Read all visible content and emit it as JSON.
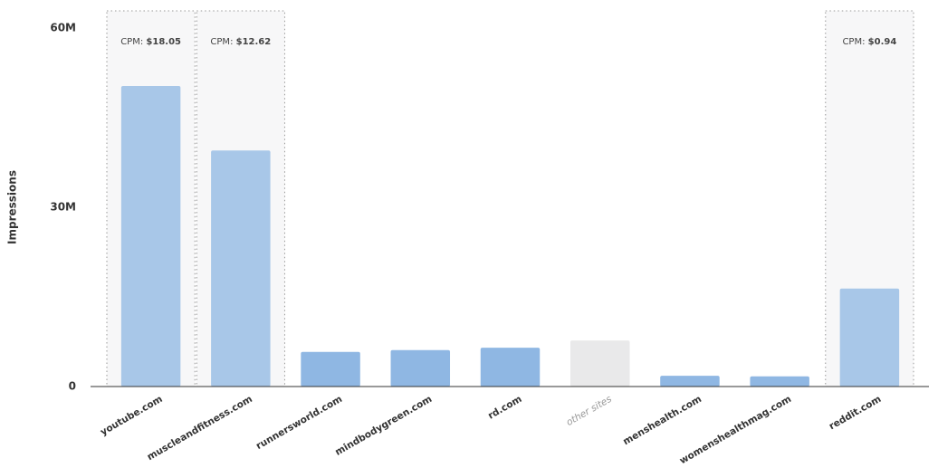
{
  "chart_data": {
    "type": "bar",
    "y_label": "Impressions",
    "categories": [
      "youtube.com",
      "muscleandfitness.com",
      "runnersworld.com",
      "mindbodygreen.com",
      "rd.com",
      "other sites",
      "menshealth.com",
      "womenshealthmag.com",
      "reddit.com"
    ],
    "values": [
      50300000,
      39500000,
      5800000,
      6100000,
      6500000,
      7700000,
      1800000,
      1700000,
      16400000
    ],
    "colors": [
      "#a8c7e8",
      "#a8c7e8",
      "#8fb7e3",
      "#8fb7e3",
      "#8fb7e3",
      "#e9e9ea",
      "#8fb7e3",
      "#8fb7e3",
      "#a8c7e8"
    ],
    "cpm": {
      "label": "CPM:",
      "values": [
        18.05,
        12.62,
        null,
        null,
        null,
        null,
        null,
        null,
        0.94
      ],
      "value_labels": [
        "$18.05",
        "$12.62",
        null,
        null,
        null,
        null,
        null,
        null,
        "$0.94"
      ]
    },
    "ylim": [
      0,
      60000000
    ],
    "yticks": [
      0,
      {
        "value": 30000000,
        "label": "30M"
      },
      {
        "value": 60000000,
        "label": "60M"
      }
    ]
  }
}
